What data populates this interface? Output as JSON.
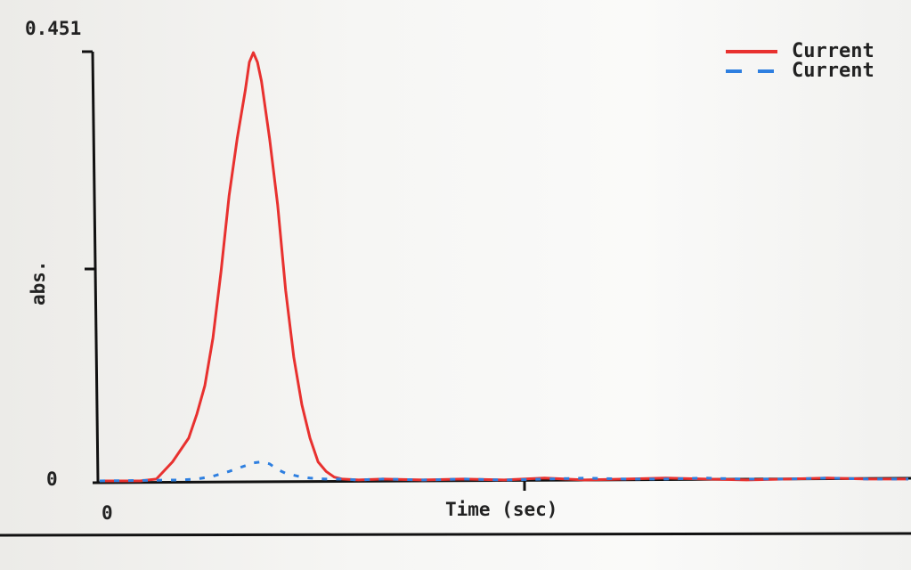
{
  "chart_data": {
    "type": "line",
    "xlabel": "Time (sec)",
    "ylabel": "abs.",
    "y_max_label": "0.451",
    "y_min_label": "0",
    "x_min_label": "0",
    "ylim": [
      0,
      0.451
    ],
    "xlim": [
      0,
      100
    ],
    "grid": false,
    "legend_position": "top-right",
    "series": [
      {
        "name": "Current",
        "color": "#e8312f",
        "style": "solid",
        "x": [
          0,
          5,
          7,
          9,
          11,
          12,
          13,
          14,
          15,
          16,
          17,
          18,
          18.5,
          19,
          19.5,
          20,
          21,
          22,
          23,
          24,
          25,
          26,
          27,
          28,
          29,
          30,
          32,
          35,
          40,
          45,
          50,
          55,
          60,
          65,
          70,
          75,
          80,
          85,
          90,
          95,
          100
        ],
        "y": [
          0,
          0,
          0.002,
          0.02,
          0.045,
          0.07,
          0.1,
          0.15,
          0.22,
          0.3,
          0.36,
          0.41,
          0.44,
          0.45,
          0.44,
          0.42,
          0.36,
          0.29,
          0.2,
          0.13,
          0.08,
          0.045,
          0.02,
          0.01,
          0.004,
          0.002,
          0.001,
          0.002,
          0.001,
          0.002,
          0.001,
          0.003,
          0.001,
          0.002,
          0.003,
          0.002,
          0.001,
          0.002,
          0.003,
          0.002,
          0.002
        ]
      },
      {
        "name": "Current",
        "color": "#2e7fe0",
        "style": "dashed",
        "x": [
          0,
          10,
          12,
          14,
          16,
          18,
          19,
          20,
          21,
          22,
          23,
          24,
          25,
          26,
          28,
          30,
          32,
          35,
          40,
          45,
          50,
          55,
          60,
          65,
          70,
          75,
          80,
          85,
          90,
          95,
          100
        ],
        "y": [
          0,
          0.001,
          0.002,
          0.005,
          0.01,
          0.016,
          0.019,
          0.02,
          0.018,
          0.012,
          0.008,
          0.006,
          0.004,
          0.003,
          0.002,
          0.002,
          0.001,
          0.002,
          0.001,
          0.002,
          0.001,
          0.002,
          0.003,
          0.002,
          0.002,
          0.003,
          0.002,
          0.002,
          0.003,
          0.002,
          0.002
        ]
      }
    ]
  }
}
